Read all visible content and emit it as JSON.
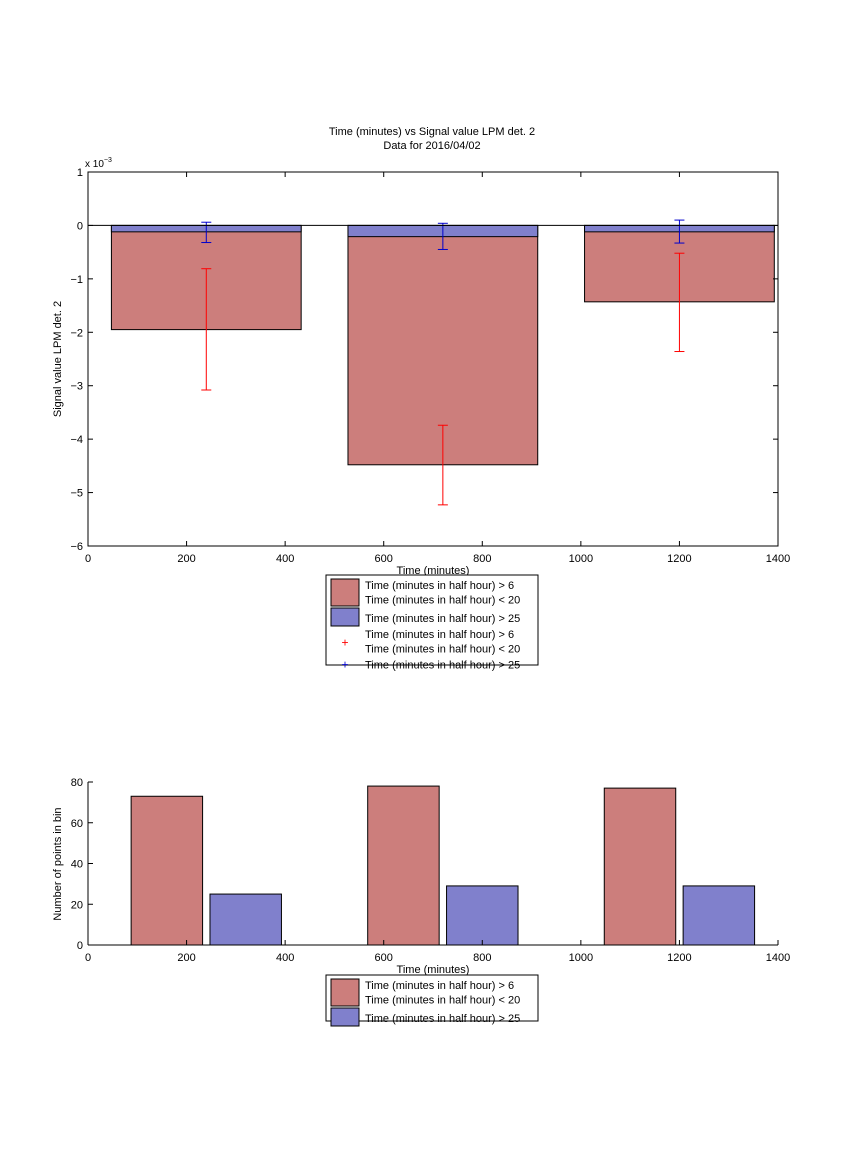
{
  "colors": {
    "red_bar": "#cc7e7c",
    "blue_bar": "#8080cc",
    "red_err": "#ff0000",
    "blue_err": "#0000cc"
  },
  "chart_data": [
    {
      "type": "bar",
      "title": "Time (minutes) vs Signal value LPM det. 2",
      "subtitle": "Data for 2016/04/02",
      "xlabel": "Time (minutes)",
      "ylabel": "Signal value LPM det. 2",
      "y_exponent_label": "x 10",
      "y_exponent_power": "−3",
      "xlim": [
        0,
        1400
      ],
      "ylim": [
        -6,
        1
      ],
      "xticks": [
        0,
        200,
        400,
        600,
        800,
        1000,
        1200,
        1400
      ],
      "yticks": [
        1,
        0,
        -1,
        -2,
        -3,
        -4,
        -5,
        -6
      ],
      "x": [
        240,
        720,
        1200
      ],
      "bar_width": 385,
      "series": [
        {
          "name": "Time (minutes in half hour) > 6\nTime (minutes in half hour) < 20",
          "color": "#cc7e7c",
          "values": [
            -1.95,
            -4.48,
            -1.43
          ]
        },
        {
          "name": "Time (minutes in half hour) > 25",
          "color": "#8080cc",
          "values": [
            -0.12,
            -0.21,
            -0.12
          ]
        }
      ],
      "error_bars": [
        {
          "name": "Time (minutes in half hour) > 6\nTime (minutes in half hour) < 20",
          "color": "#ff0000",
          "marker": "+",
          "low": [
            -3.08,
            -5.23,
            -2.36
          ],
          "high": [
            -0.81,
            -3.74,
            -0.52
          ]
        },
        {
          "name": "Time (minutes in half hour) > 25",
          "color": "#0000cc",
          "marker": "+",
          "low": [
            -0.32,
            -0.45,
            -0.33
          ],
          "high": [
            0.06,
            0.04,
            0.1
          ]
        }
      ],
      "legend": {
        "placement": "below",
        "entries": [
          {
            "kind": "patch",
            "color": "#cc7e7c",
            "lines": [
              "Time (minutes in half hour) > 6",
              "Time (minutes in half hour) < 20"
            ]
          },
          {
            "kind": "patch",
            "color": "#8080cc",
            "lines": [
              "Time (minutes in half hour) > 25"
            ]
          },
          {
            "kind": "marker",
            "color": "#ff0000",
            "lines": [
              "Time (minutes in half hour) > 6",
              "Time (minutes in half hour) < 20"
            ]
          },
          {
            "kind": "marker",
            "color": "#0000cc",
            "lines": [
              "Time (minutes in half hour) > 25"
            ]
          }
        ]
      }
    },
    {
      "type": "bar",
      "title": "",
      "xlabel": "Time (minutes)",
      "ylabel": "Number of points in bin",
      "xlim": [
        0,
        1400
      ],
      "ylim": [
        0,
        80
      ],
      "xticks": [
        0,
        200,
        400,
        600,
        800,
        1000,
        1200,
        1400
      ],
      "yticks": [
        80,
        60,
        40,
        20,
        0
      ],
      "bar_width": 145,
      "series": [
        {
          "name": "Time (minutes in half hour) > 6\nTime (minutes in half hour) < 20",
          "color": "#cc7e7c",
          "x": [
            160,
            640,
            1120
          ],
          "values": [
            73,
            78,
            77
          ]
        },
        {
          "name": "Time (minutes in half hour) > 25",
          "color": "#8080cc",
          "x": [
            320,
            800,
            1280
          ],
          "values": [
            25,
            29,
            29
          ]
        }
      ],
      "legend": {
        "placement": "below",
        "entries": [
          {
            "kind": "patch",
            "color": "#cc7e7c",
            "lines": [
              "Time (minutes in half hour) > 6",
              "Time (minutes in half hour) < 20"
            ]
          },
          {
            "kind": "patch",
            "color": "#8080cc",
            "lines": [
              "Time (minutes in half hour) > 25"
            ]
          }
        ]
      }
    }
  ]
}
